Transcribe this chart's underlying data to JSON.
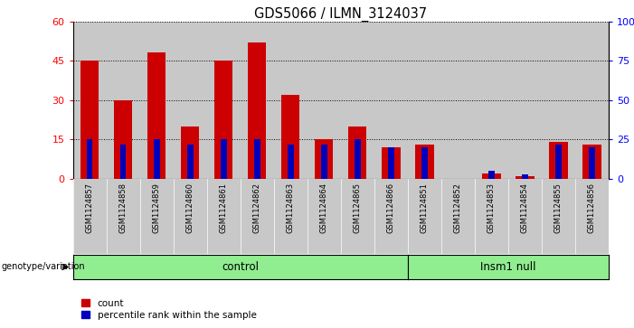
{
  "title": "GDS5066 / ILMN_3124037",
  "samples": [
    "GSM1124857",
    "GSM1124858",
    "GSM1124859",
    "GSM1124860",
    "GSM1124861",
    "GSM1124862",
    "GSM1124863",
    "GSM1124864",
    "GSM1124865",
    "GSM1124866",
    "GSM1124851",
    "GSM1124852",
    "GSM1124853",
    "GSM1124854",
    "GSM1124855",
    "GSM1124856"
  ],
  "count_values": [
    45,
    30,
    48,
    20,
    45,
    52,
    32,
    15,
    20,
    12,
    13,
    0,
    2,
    1,
    14,
    13
  ],
  "percentile_values": [
    25,
    22,
    25,
    22,
    25,
    25,
    22,
    22,
    25,
    20,
    20,
    0,
    5,
    3,
    22,
    20
  ],
  "n_control": 10,
  "n_insm1": 6,
  "ylim_left": [
    0,
    60
  ],
  "ylim_right": [
    0,
    100
  ],
  "yticks_left": [
    0,
    15,
    30,
    45,
    60
  ],
  "yticks_right": [
    0,
    25,
    50,
    75,
    100
  ],
  "ytick_labels_right": [
    "0",
    "25",
    "50",
    "75",
    "100%"
  ],
  "bar_color": "#CC0000",
  "percentile_color": "#0000BB",
  "bar_width": 0.55,
  "pct_bar_width": 0.18,
  "col_bg_color": "#C8C8C8",
  "control_color": "#90EE90",
  "insm1_color": "#90EE90",
  "label_count": "count",
  "label_percentile": "percentile rank within the sample",
  "genotype_label": "genotype/variation"
}
